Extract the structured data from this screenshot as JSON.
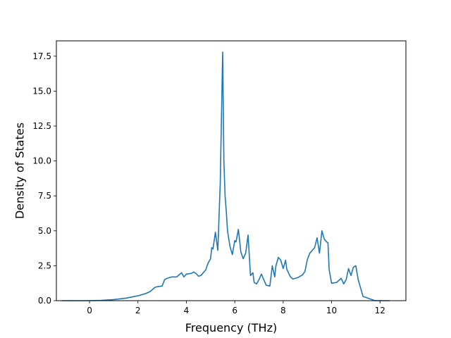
{
  "chart_data": {
    "type": "line",
    "title": "",
    "xlabel": "Frequency (THz)",
    "ylabel": "Density of States",
    "xlim": [
      -1.37,
      13.07
    ],
    "ylim": [
      0,
      18.6
    ],
    "xticks": [
      0,
      2,
      4,
      6,
      8,
      10,
      12
    ],
    "yticks": [
      0.0,
      2.5,
      5.0,
      7.5,
      10.0,
      12.5,
      15.0,
      17.5
    ],
    "xtick_labels": [
      "0",
      "2",
      "4",
      "6",
      "8",
      "10",
      "12"
    ],
    "ytick_labels": [
      "0.0",
      "2.5",
      "5.0",
      "7.5",
      "10.0",
      "12.5",
      "15.0",
      "17.5"
    ],
    "grid": false,
    "legend": "none",
    "series": [
      {
        "color": "#1f77b4",
        "x": [
          -1.15,
          -0.5,
          0,
          0.5,
          1.0,
          1.5,
          2.0,
          2.3,
          2.5,
          2.7,
          2.8,
          3.0,
          3.1,
          3.2,
          3.4,
          3.6,
          3.8,
          3.9,
          4.0,
          4.2,
          4.3,
          4.4,
          4.5,
          4.6,
          4.7,
          4.8,
          4.9,
          5.0,
          5.05,
          5.1,
          5.2,
          5.3,
          5.4,
          5.5,
          5.55,
          5.6,
          5.65,
          5.7,
          5.8,
          5.9,
          6.0,
          6.05,
          6.15,
          6.25,
          6.35,
          6.45,
          6.55,
          6.65,
          6.75,
          6.8,
          6.9,
          7.0,
          7.1,
          7.2,
          7.3,
          7.45,
          7.55,
          7.65,
          7.7,
          7.8,
          7.9,
          8.0,
          8.1,
          8.15,
          8.3,
          8.4,
          8.6,
          8.8,
          8.9,
          9.0,
          9.1,
          9.3,
          9.4,
          9.5,
          9.6,
          9.7,
          9.8,
          9.85,
          9.9,
          10.0,
          10.2,
          10.4,
          10.5,
          10.6,
          10.7,
          10.8,
          10.9,
          11.0,
          11.1,
          11.2,
          11.3,
          11.8,
          12.4
        ],
        "y": [
          0,
          0,
          0,
          0.02,
          0.08,
          0.18,
          0.35,
          0.5,
          0.65,
          0.95,
          1.0,
          1.05,
          1.5,
          1.6,
          1.7,
          1.7,
          2.0,
          1.7,
          1.9,
          1.95,
          2.05,
          1.95,
          1.75,
          1.8,
          2.0,
          2.2,
          2.7,
          3.0,
          3.8,
          3.7,
          4.9,
          3.6,
          8.4,
          17.8,
          10.0,
          7.5,
          6.4,
          5.0,
          3.9,
          3.3,
          4.3,
          4.2,
          5.1,
          3.5,
          3.0,
          3.4,
          4.7,
          1.8,
          2.0,
          1.3,
          1.2,
          1.5,
          1.9,
          1.5,
          1.1,
          1.05,
          2.5,
          1.7,
          2.5,
          3.1,
          2.9,
          2.3,
          2.9,
          2.25,
          1.7,
          1.55,
          1.65,
          1.85,
          2.1,
          2.95,
          3.4,
          3.8,
          4.5,
          3.4,
          5.0,
          4.4,
          4.2,
          4.15,
          2.2,
          1.25,
          1.3,
          1.6,
          1.2,
          1.5,
          2.3,
          1.8,
          2.4,
          2.5,
          1.5,
          0.9,
          0.3,
          0,
          0
        ]
      }
    ]
  }
}
